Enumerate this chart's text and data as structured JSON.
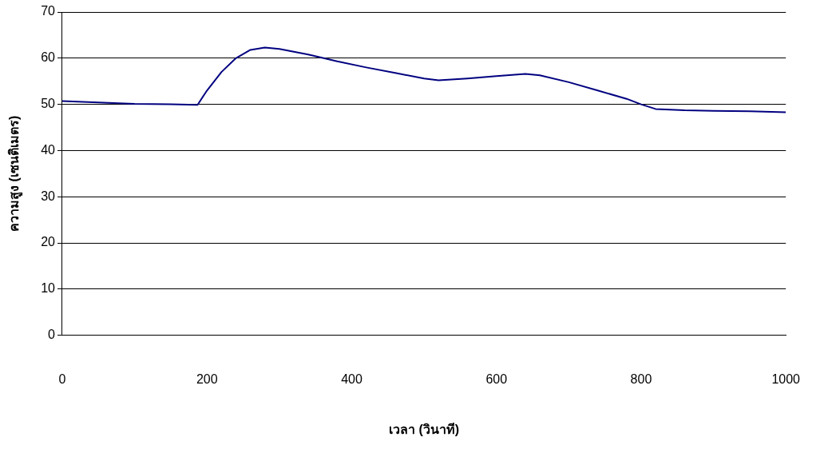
{
  "chart_data": {
    "type": "line",
    "xlabel": "เวลา (วินาที)",
    "ylabel": "ความสูง (เซนติเมตร)",
    "x": [
      0,
      50,
      100,
      150,
      187,
      200,
      220,
      240,
      260,
      280,
      300,
      340,
      380,
      420,
      460,
      500,
      520,
      560,
      600,
      640,
      660,
      700,
      740,
      780,
      800,
      820,
      860,
      900,
      950,
      1000
    ],
    "series": [
      {
        "color": "#000080",
        "values": [
          50.7,
          50.4,
          50.1,
          50.0,
          49.9,
          53,
          57,
          60,
          61.8,
          62.3,
          62.0,
          60.8,
          59.3,
          58.0,
          56.8,
          55.6,
          55.2,
          55.6,
          56.1,
          56.6,
          56.3,
          54.8,
          53,
          51.2,
          50.0,
          49.0,
          48.7,
          48.6,
          48.5,
          48.3
        ]
      }
    ],
    "xlim": [
      0,
      1000
    ],
    "xticks": [
      0,
      200,
      400,
      600,
      800,
      1000
    ],
    "ylim": [
      0,
      70
    ],
    "yticks": [
      0,
      10,
      20,
      30,
      40,
      50,
      60,
      70
    ],
    "grid": "y",
    "legend": false,
    "marker": "none",
    "line_style": "solid"
  }
}
